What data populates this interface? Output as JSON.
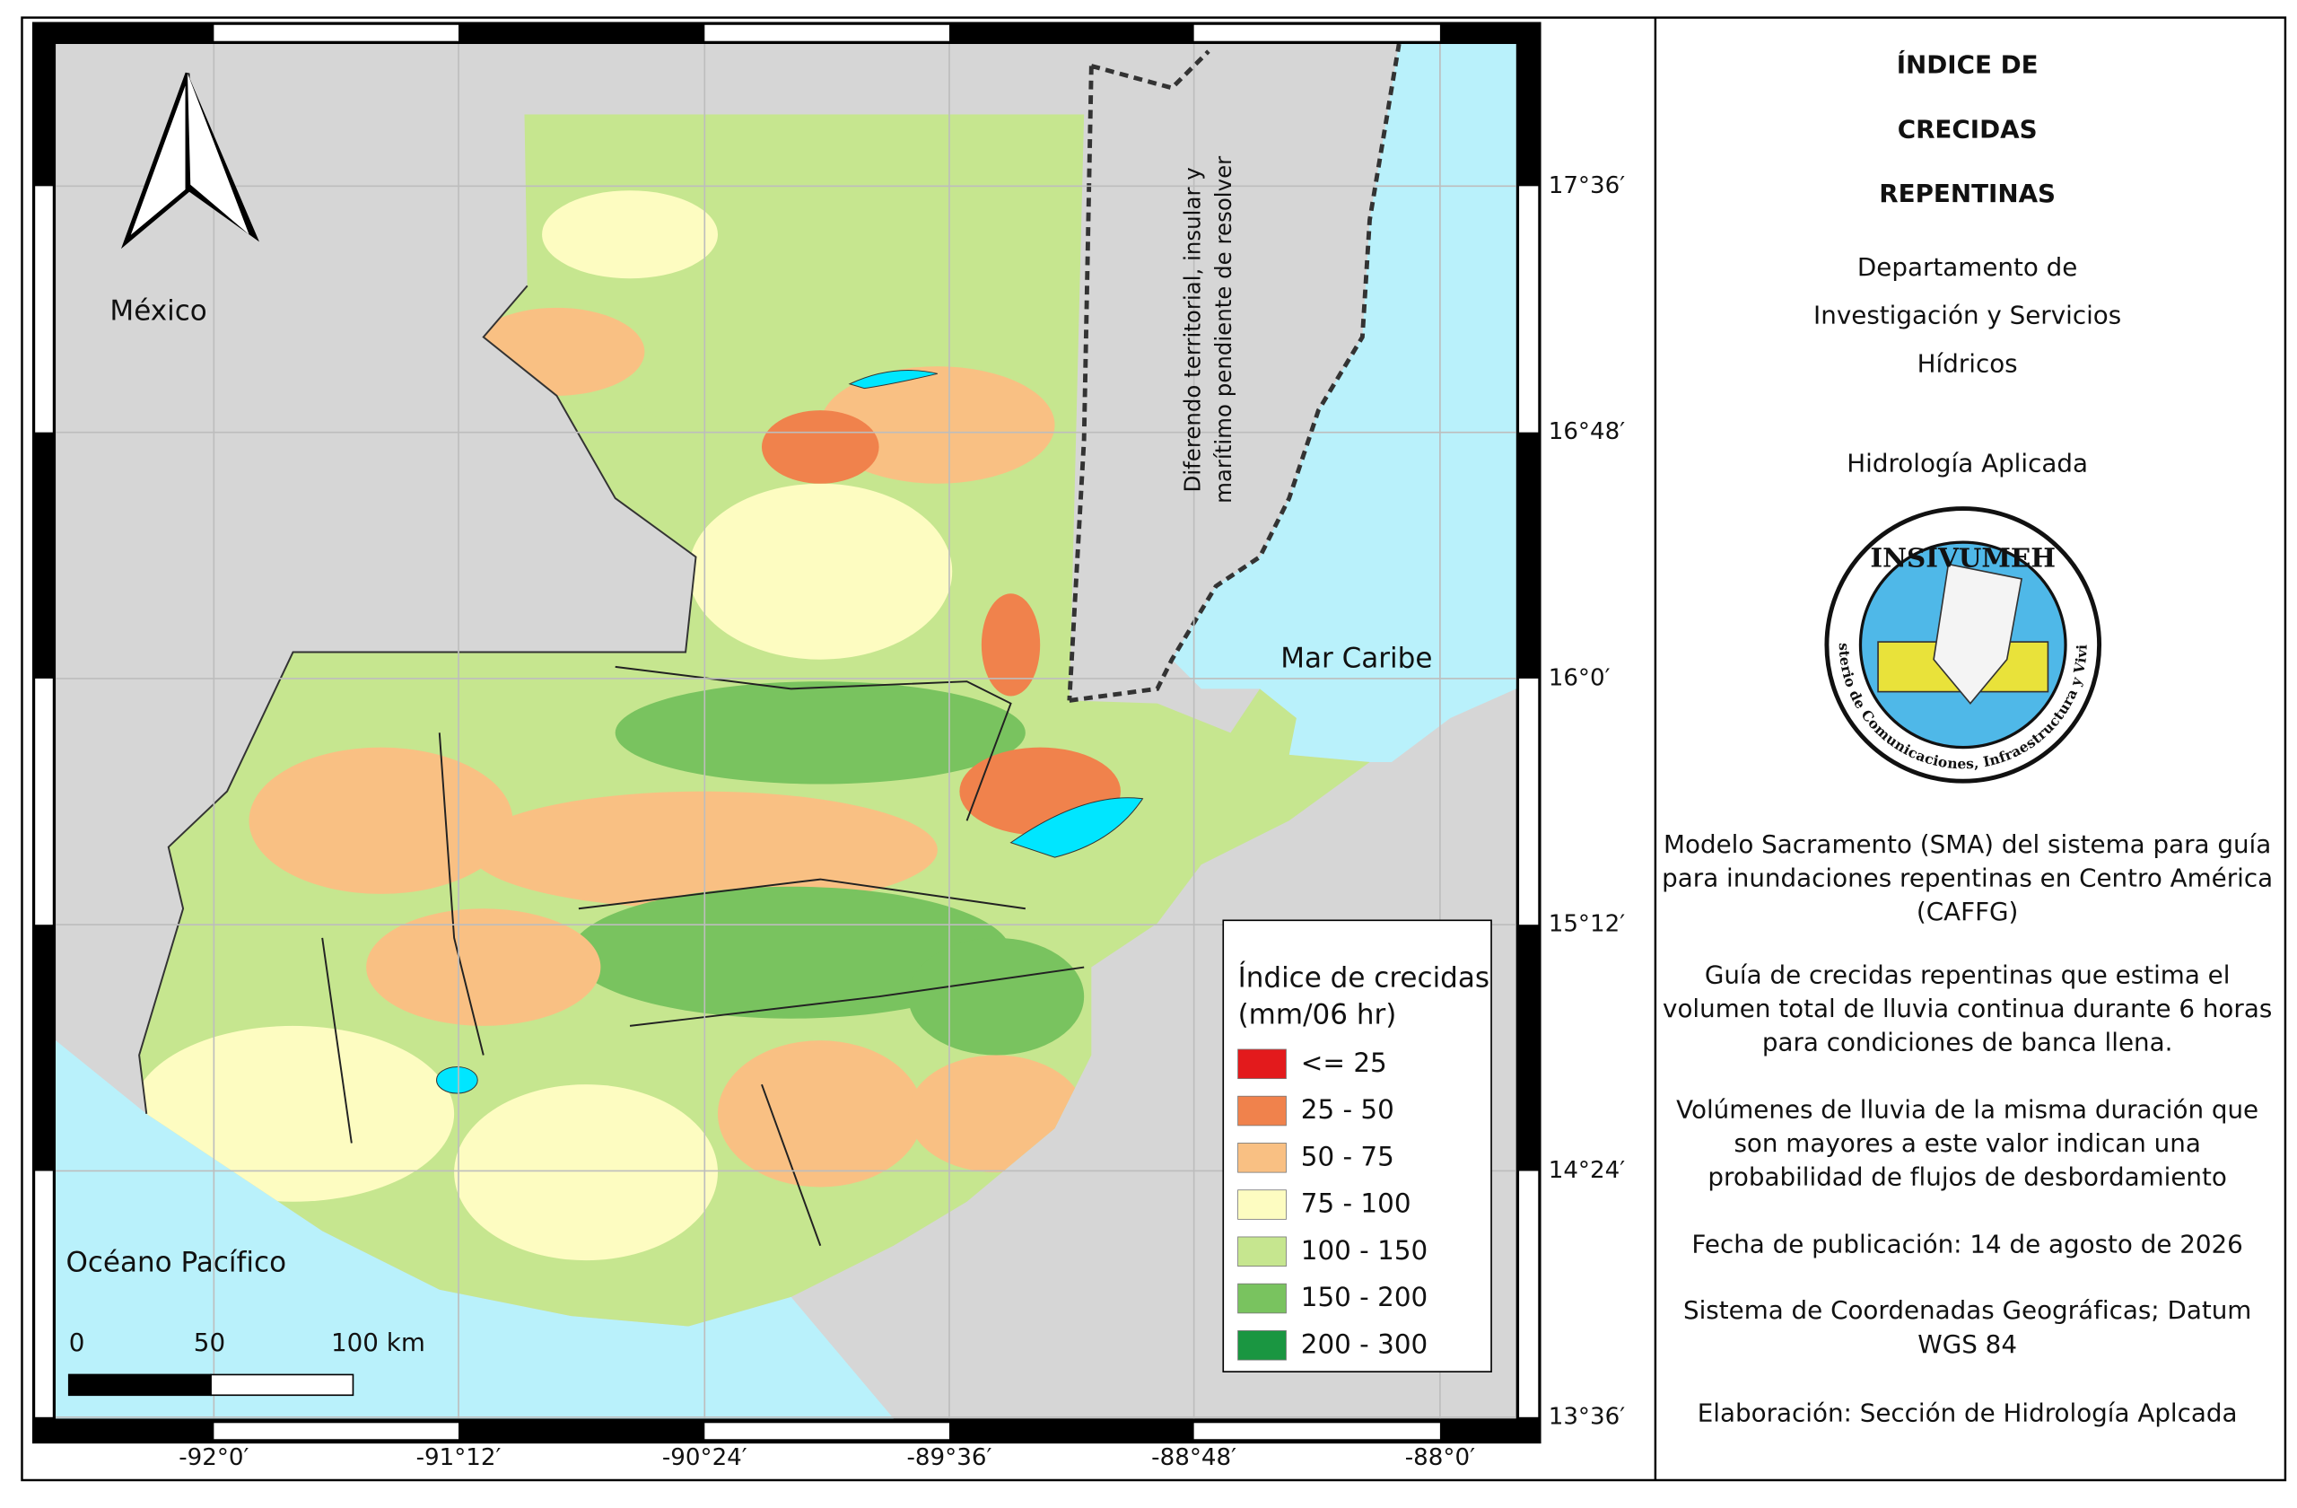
{
  "map": {
    "country_labels": [
      "México",
      "Mar Caribe",
      "Océano Pacífico"
    ],
    "dispute_label": [
      "Diferendo territorial, insular y",
      "marítimo pendiente de resolver"
    ],
    "longitude_labels": [
      "-92°0′",
      "-91°12′",
      "-90°24′",
      "-89°36′",
      "-88°48′",
      "-88°0′"
    ],
    "latitude_labels": [
      "17°36′",
      "16°48′",
      "16°0′",
      "15°12′",
      "14°24′",
      "13°36′"
    ],
    "scale_bar": [
      "0",
      "50",
      "100 km"
    ]
  },
  "legend": {
    "title": [
      "Índice de crecidas",
      "(mm/06 hr)"
    ],
    "classes": [
      {
        "label": "<= 25",
        "color": "#e31a1c"
      },
      {
        "label": "25 - 50",
        "color": "#f0824c"
      },
      {
        "label": "50 - 75",
        "color": "#f9c083"
      },
      {
        "label": "75 - 100",
        "color": "#fdfcc1"
      },
      {
        "label": "100 - 150",
        "color": "#c6e68f"
      },
      {
        "label": "150 - 200",
        "color": "#79c35f"
      },
      {
        "label": "200 - 300",
        "color": "#1a9641"
      }
    ]
  },
  "panel": {
    "title": [
      "ÍNDICE DE",
      "CRECIDAS",
      "REPENTINAS"
    ],
    "department": [
      "Departamento de",
      "Investigación y Servicios",
      "Hídricos"
    ],
    "section": "Hidrología Aplicada",
    "logo": {
      "name": "INSIVUMEH",
      "ministry": "Ministerio de Comunicaciones, Infraestructura y Vivienda"
    },
    "paragraphs": [
      [
        "Modelo Sacramento (SMA) del sistema para guía",
        "para inundaciones repentinas en Centro América",
        "(CAFFG)"
      ],
      [
        "Guía de crecidas repentinas que estima el",
        "volumen total de lluvia continua durante 6 horas",
        "para condiciones de banca llena."
      ],
      [
        "Volúmenes de lluvia de la misma duración que",
        "son mayores a este valor indican una",
        "probabilidad de flujos de desbordamiento"
      ],
      [
        "Fecha de publicación: 14 de agosto de 2026"
      ],
      [
        "Sistema de Coordenadas Geográficas; Datum",
        "WGS 84"
      ],
      [
        "Elaboración: Sección de Hidrología Aplcada"
      ]
    ]
  }
}
